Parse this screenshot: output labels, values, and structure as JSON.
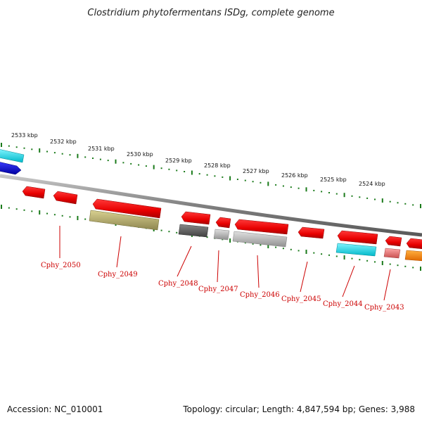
{
  "title": "Clostridium phytofermentans ISDg, complete genome",
  "footer": {
    "accession": "Accession: NC_010001",
    "summary": "Topology: circular; Length: 4,847,594 bp; Genes: 3,988"
  },
  "ruler": {
    "labels": [
      "2533 kbp",
      "2532 kbp",
      "2531 kbp",
      "2530 kbp",
      "2529 kbp",
      "2528 kbp",
      "2527 kbp",
      "2526 kbp",
      "2525 kbp",
      "2524 kbp"
    ]
  },
  "gene_labels": [
    "Cphy_2050",
    "Cphy_2049",
    "Cphy_2048",
    "Cphy_2047",
    "Cphy_2046",
    "Cphy_2045",
    "Cphy_2044",
    "Cphy_2043"
  ],
  "colors": {
    "tick": "#1a7a1a",
    "backbone": "#888888",
    "label": "#cc0000",
    "red": "#ee0000",
    "cyan": "#00d8e8",
    "blue": "#0000dd",
    "olive": "#b8b070",
    "darkgray": "#666666",
    "lightgray": "#b8b8b8",
    "pink": "#e87878",
    "orange": "#ff8800"
  }
}
